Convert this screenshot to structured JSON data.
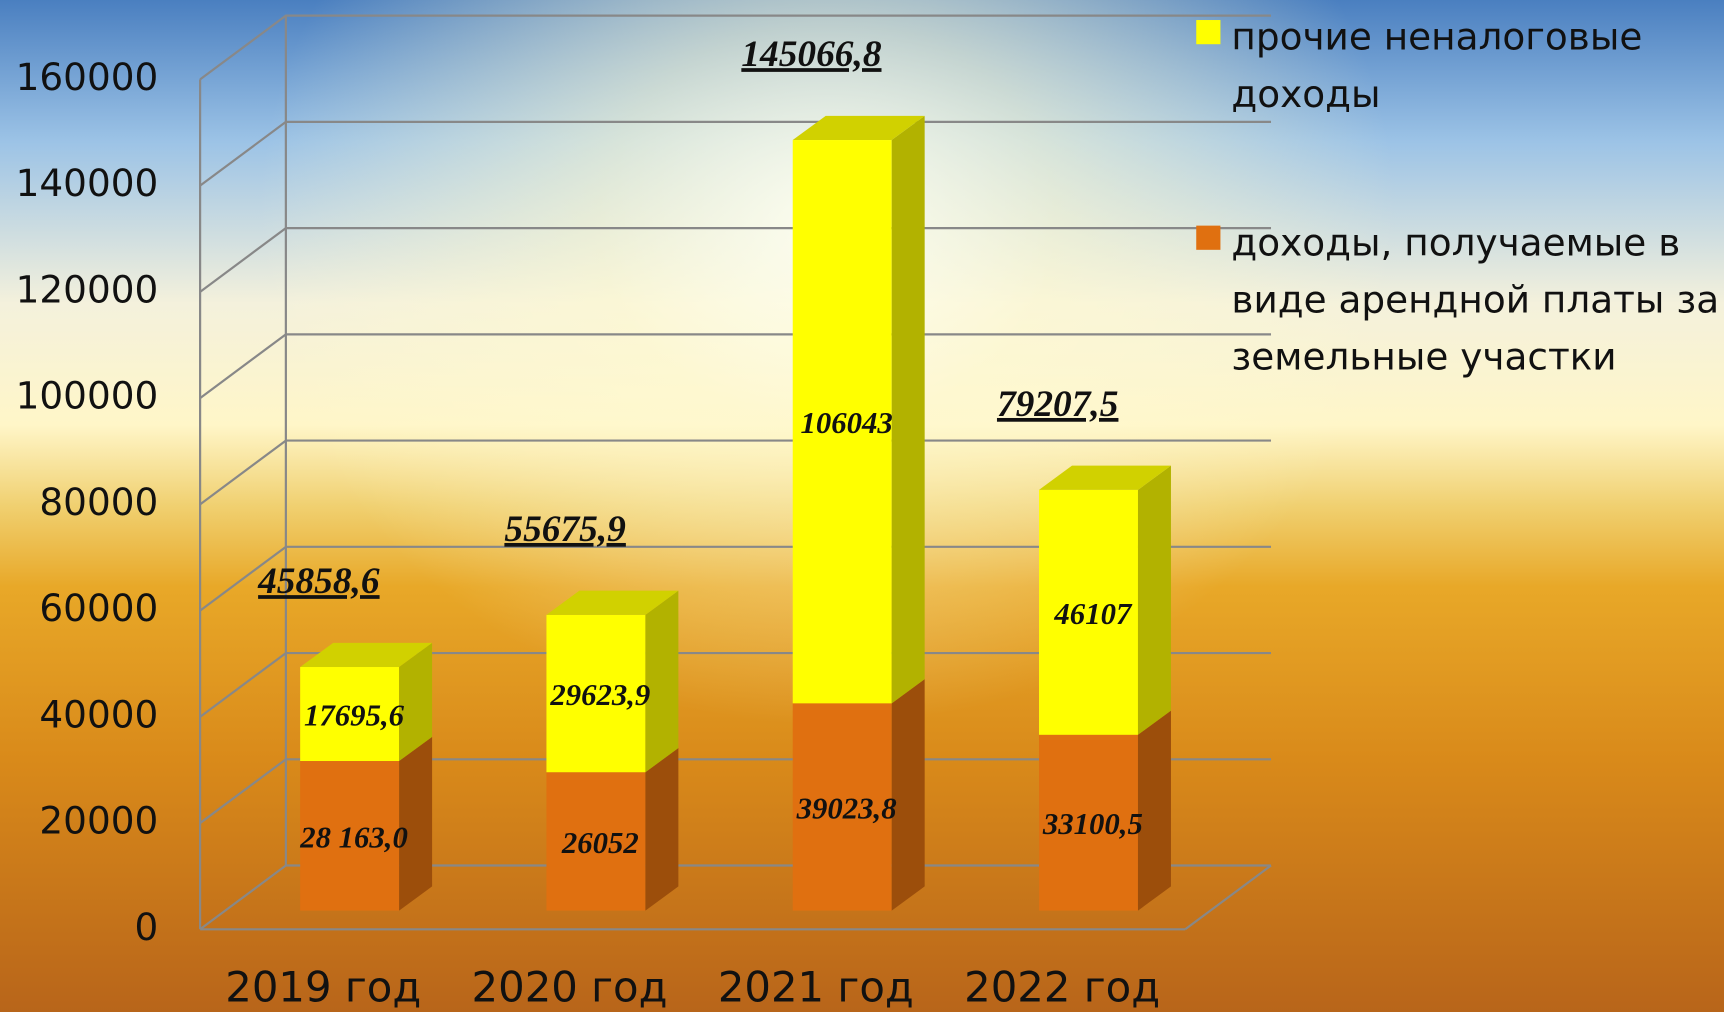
{
  "chart_data": {
    "type": "bar",
    "stacked": true,
    "categories": [
      "2019 год",
      "2020 год",
      "2021 год",
      "2022 год"
    ],
    "series": [
      {
        "name": "доходы, получаемые в виде арендной платы за земельные участки",
        "color": "#e07010",
        "values": [
          28163.0,
          26052,
          39023.8,
          33100.5
        ],
        "value_labels": [
          "28 163,0",
          "26052",
          "39023,8",
          "33100,5"
        ]
      },
      {
        "name": "прочие неналоговые доходы",
        "color": "#ffff00",
        "values": [
          17695.6,
          29623.9,
          106043,
          46107
        ],
        "value_labels": [
          "17695,6",
          "29623,9",
          "106043",
          "46107"
        ]
      }
    ],
    "totals": {
      "values": [
        45858.6,
        55675.9,
        145066.8,
        79207.5
      ],
      "value_labels": [
        "45858,6",
        "55675,9",
        "145066,8",
        "79207,5"
      ]
    },
    "ylim": [
      0,
      160000
    ],
    "yticks": [
      0,
      20000,
      40000,
      60000,
      80000,
      100000,
      120000,
      140000,
      160000
    ],
    "grid": true
  }
}
